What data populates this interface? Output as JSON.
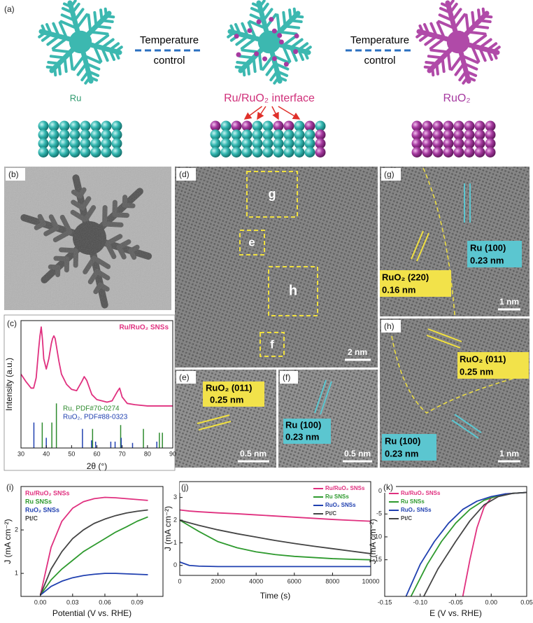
{
  "figure": {
    "a": {
      "label": "(a)",
      "arrow_left_top": "Temperature",
      "arrow_left_bottom": "control",
      "arrow_right_top": "Temperature",
      "arrow_right_bottom": "control",
      "left_name": "Ru",
      "middle_name": "Ru/RuO₂ interface",
      "right_name": "RuO₂"
    },
    "b": {
      "label": "(b)"
    },
    "d": {
      "label": "(d)",
      "regions": [
        "g",
        "e",
        "h",
        "f"
      ],
      "scale_bar": "2 nm"
    },
    "e": {
      "label": "(e)",
      "plane": "RuO₂ (011)",
      "spacing": "0.25 nm",
      "scale_bar": "0.5 nm"
    },
    "f": {
      "label": "(f)",
      "plane": "Ru (100)",
      "spacing": "0.23 nm",
      "scale_bar": "0.5 nm"
    },
    "g": {
      "label": "(g)",
      "plane_1": "RuO₂ (220)",
      "spacing_1": "0.16 nm",
      "plane_2": "Ru (100)",
      "spacing_2": "0.23 nm",
      "scale_bar": "1 nm"
    },
    "h": {
      "label": "(h)",
      "plane_1": "RuO₂ (011)",
      "spacing_1": "0.25 nm",
      "plane_2": "Ru (100)",
      "spacing_2": "0.23 nm",
      "scale_bar": "1 nm"
    }
  },
  "chart_data": [
    {
      "type": "line",
      "panel_label": "(c)",
      "xlabel": "2θ (°)",
      "ylabel": "Intensity (a.u.)",
      "xlim": [
        30,
        90
      ],
      "xticks": [
        30,
        40,
        50,
        60,
        70,
        80,
        90
      ],
      "ylim": [
        0,
        100
      ],
      "legend": "upper right",
      "legend_style": "text",
      "series": [
        {
          "name": "Ru/RuO₂ SNSs",
          "color": "#e0307f",
          "x": [
            30,
            32,
            34,
            35,
            36,
            37,
            37.5,
            38,
            38.5,
            39,
            40,
            41,
            42,
            42.5,
            43,
            43.5,
            44,
            45,
            46,
            48,
            50,
            52,
            54,
            55,
            56,
            58,
            60,
            62,
            64,
            66,
            68,
            69,
            70,
            72,
            75,
            80,
            85,
            90
          ],
          "values": [
            58,
            52,
            47,
            47,
            55,
            78,
            88,
            95,
            85,
            70,
            62,
            70,
            82,
            86,
            88,
            86,
            80,
            68,
            58,
            50,
            46,
            45,
            52,
            56,
            53,
            42,
            38,
            37,
            36,
            37,
            44,
            47,
            40,
            35,
            34,
            33,
            33,
            33
          ]
        }
      ],
      "reference_patterns": [
        {
          "name": "Ru, PDF#70-0274",
          "color": "#2e8b2e",
          "x": [
            38.4,
            42.2,
            44.0,
            58.3,
            69.4,
            78.4,
            84.7,
            85.9
          ],
          "values": [
            20,
            20,
            35,
            15,
            18,
            15,
            12,
            12
          ]
        },
        {
          "name": "RuO₂, PDF#88-0323",
          "color": "#2040b0",
          "x": [
            35.1,
            40.0,
            54.3,
            57.9,
            59.5,
            65.5,
            67.2,
            69.6,
            74.1,
            83.7
          ],
          "values": [
            20,
            8,
            15,
            6,
            5,
            5,
            5,
            8,
            4,
            5
          ]
        }
      ]
    },
    {
      "type": "line",
      "panel_label": "(i)",
      "xlabel": "Potential (V vs. RHE)",
      "ylabel": "J (mA cm⁻²)",
      "xlim": [
        -0.018,
        0.114
      ],
      "xticks": [
        {
          "value": 0,
          "label": "0.00"
        },
        0.03,
        0.06,
        0.09
      ],
      "ylim": [
        0.47,
        3.0
      ],
      "yticks": [
        1,
        2
      ],
      "legend": "upper left",
      "legend_style": "text",
      "series": [
        {
          "name": "Ru/RuO₂ SNSs",
          "color": "#e0307f",
          "x": [
            0,
            0.01,
            0.02,
            0.03,
            0.04,
            0.05,
            0.06,
            0.07,
            0.08,
            0.09,
            0.1
          ],
          "values": [
            0.5,
            1.6,
            2.2,
            2.5,
            2.65,
            2.72,
            2.75,
            2.74,
            2.72,
            2.7,
            2.68
          ]
        },
        {
          "name": "Ru SNSs",
          "color": "#2e9a2e",
          "x": [
            0,
            0.01,
            0.02,
            0.03,
            0.04,
            0.05,
            0.06,
            0.07,
            0.08,
            0.09,
            0.1
          ],
          "values": [
            0.5,
            0.85,
            1.1,
            1.3,
            1.5,
            1.65,
            1.8,
            1.95,
            2.07,
            2.2,
            2.3
          ]
        },
        {
          "name": "RuO₂ SNSs",
          "color": "#2040b0",
          "x": [
            0,
            0.01,
            0.02,
            0.03,
            0.04,
            0.05,
            0.06,
            0.07,
            0.08,
            0.09,
            0.1
          ],
          "values": [
            0.5,
            0.7,
            0.82,
            0.9,
            0.95,
            0.98,
            1.0,
            1.0,
            0.99,
            0.98,
            0.97
          ]
        },
        {
          "name": "Pt/C",
          "color": "#444444",
          "x": [
            0,
            0.01,
            0.02,
            0.03,
            0.04,
            0.05,
            0.06,
            0.07,
            0.08,
            0.09,
            0.1
          ],
          "values": [
            0.5,
            1.1,
            1.5,
            1.8,
            2.0,
            2.15,
            2.25,
            2.33,
            2.39,
            2.43,
            2.46
          ]
        }
      ]
    },
    {
      "type": "line",
      "panel_label": "(j)",
      "xlabel": "Time (s)",
      "ylabel": "J (mA cm⁻²)",
      "xlim": [
        0,
        10000
      ],
      "xticks": [
        0,
        2000,
        4000,
        6000,
        8000,
        10000
      ],
      "ylim": [
        -0.44,
        3.7
      ],
      "yticks": [
        0,
        1,
        2,
        3
      ],
      "legend": "upper right",
      "legend_style": "line",
      "series": [
        {
          "name": "Ru/RuO₂ SNSs",
          "color": "#e0307f",
          "x": [
            0,
            500,
            1000,
            2000,
            3000,
            4000,
            5000,
            6000,
            7000,
            8000,
            9000,
            10000
          ],
          "values": [
            2.45,
            2.4,
            2.37,
            2.32,
            2.28,
            2.23,
            2.18,
            2.13,
            2.08,
            2.03,
            1.99,
            1.95
          ]
        },
        {
          "name": "Ru SNSs",
          "color": "#2e9a2e",
          "x": [
            0,
            500,
            1000,
            2000,
            3000,
            4000,
            5000,
            6000,
            7000,
            8000,
            9000,
            10000
          ],
          "values": [
            2.0,
            1.75,
            1.5,
            1.05,
            0.78,
            0.6,
            0.48,
            0.4,
            0.35,
            0.3,
            0.27,
            0.25
          ]
        },
        {
          "name": "RuO₂ SNSs",
          "color": "#2040b0",
          "x": [
            0,
            500,
            1000,
            2000,
            3000,
            4000,
            5000,
            6000,
            7000,
            8000,
            9000,
            10000
          ],
          "values": [
            0.15,
            0.0,
            -0.03,
            -0.05,
            -0.05,
            -0.05,
            -0.05,
            -0.05,
            -0.05,
            -0.05,
            -0.05,
            -0.05
          ]
        },
        {
          "name": "Pt/C",
          "color": "#444444",
          "x": [
            0,
            500,
            1000,
            2000,
            3000,
            4000,
            5000,
            6000,
            7000,
            8000,
            9000,
            10000
          ],
          "values": [
            2.0,
            1.88,
            1.77,
            1.57,
            1.4,
            1.25,
            1.1,
            0.97,
            0.85,
            0.74,
            0.63,
            0.52
          ]
        }
      ]
    },
    {
      "type": "line",
      "panel_label": "(k)",
      "xlabel": "E (V vs. RHE)",
      "ylabel": "J (mA cm⁻²)",
      "xlim": [
        -0.15,
        0.05
      ],
      "xticks": [
        -0.15,
        {
          "value": -0.1,
          "label": "-0.10"
        },
        -0.05,
        {
          "value": 0,
          "label": "0.00"
        },
        0.05
      ],
      "ylim": [
        -23,
        1
      ],
      "yticks": [
        -15,
        -10,
        -5,
        0
      ],
      "legend": "upper left",
      "legend_style": "line",
      "series": [
        {
          "name": "Ru/RuO₂ SNSs",
          "color": "#e0307f",
          "x": [
            -0.04,
            -0.03,
            -0.02,
            -0.01,
            0,
            0.02,
            0.05
          ],
          "values": [
            -23,
            -15,
            -8,
            -3.5,
            -1.5,
            -0.6,
            -0.3
          ]
        },
        {
          "name": "Ru SNSs",
          "color": "#2e9a2e",
          "x": [
            -0.113,
            -0.09,
            -0.07,
            -0.05,
            -0.03,
            -0.01,
            0.01,
            0.03,
            0.05
          ],
          "values": [
            -23,
            -16,
            -11,
            -7,
            -4,
            -2,
            -1,
            -0.5,
            -0.3
          ]
        },
        {
          "name": "RuO₂ SNSs",
          "color": "#2040b0",
          "x": [
            -0.12,
            -0.1,
            -0.08,
            -0.06,
            -0.04,
            -0.02,
            0,
            0.02,
            0.05
          ],
          "values": [
            -23,
            -16,
            -11,
            -7,
            -4,
            -2.2,
            -1.2,
            -0.6,
            -0.3
          ]
        },
        {
          "name": "Pt/C",
          "color": "#444444",
          "x": [
            -0.095,
            -0.075,
            -0.05,
            -0.03,
            -0.01,
            0.01,
            0.03,
            0.05
          ],
          "values": [
            -23,
            -17,
            -11,
            -6.5,
            -3,
            -1.2,
            -0.5,
            -0.3
          ]
        }
      ]
    }
  ]
}
